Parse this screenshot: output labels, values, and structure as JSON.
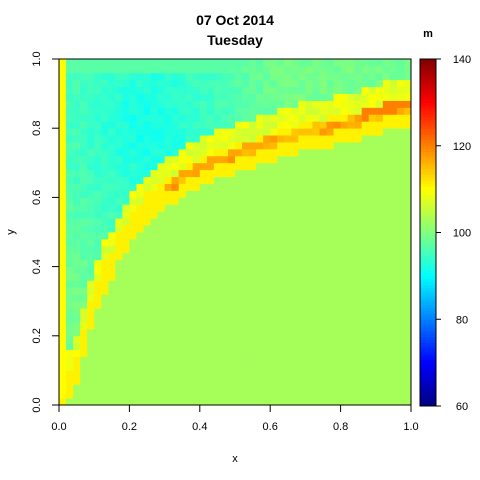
{
  "chart_data": {
    "type": "heatmap",
    "title": "07 Oct 2014",
    "subtitle": "Tuesday",
    "xlabel": "x",
    "ylabel": "y",
    "xlim": [
      0,
      1
    ],
    "ylim": [
      0,
      1
    ],
    "x_ticks": [
      0.0,
      0.2,
      0.4,
      0.6,
      0.8,
      1.0
    ],
    "x_tick_labels": [
      "0.0",
      "0.2",
      "0.4",
      "0.6",
      "0.8",
      "1.0"
    ],
    "y_ticks": [
      0.0,
      0.2,
      0.4,
      0.6,
      0.8,
      1.0
    ],
    "y_tick_labels": [
      "0.0",
      "0.2",
      "0.4",
      "0.6",
      "0.8",
      "1.0"
    ],
    "grid": false,
    "colorbar": {
      "title": "m",
      "min": 60,
      "max": 140,
      "ticks": [
        60,
        80,
        100,
        120,
        140
      ],
      "tick_labels": [
        "60",
        "80",
        "100",
        "120",
        "140"
      ],
      "palette": "jet"
    },
    "grid_size": 50,
    "field": {
      "description_free": true,
      "baseline_value": 103,
      "edge_ridge_value": 110,
      "ridge_peak_value": 121,
      "upper_left_min_value": 91,
      "ridge_center_x": [
        0.04,
        0.08,
        0.12,
        0.18,
        0.25,
        0.33,
        0.42,
        0.52,
        0.62,
        0.72,
        0.82,
        0.92,
        1.0
      ],
      "ridge_center_y": [
        0.04,
        0.2,
        0.33,
        0.45,
        0.55,
        0.61,
        0.66,
        0.7,
        0.73,
        0.76,
        0.78,
        0.81,
        0.83
      ]
    }
  }
}
